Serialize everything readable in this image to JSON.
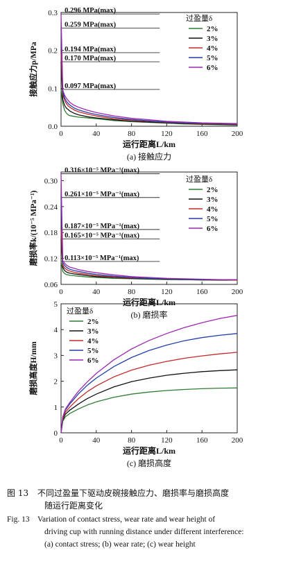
{
  "chart_data": [
    {
      "type": "line",
      "panel_caption": "(a) 接触应力",
      "ylabel": "接触应力p/MPa",
      "xlabel": "运行距离L/km",
      "xlim": [
        0,
        200
      ],
      "ylim": [
        0,
        0.3
      ],
      "xticks": [
        0,
        40,
        80,
        120,
        160,
        200
      ],
      "yticks": [
        0.0,
        0.1,
        0.2,
        0.3
      ],
      "yticks_labels": [
        "0.0",
        "0.1",
        "0.2",
        "0.3"
      ],
      "legend_title": "过盈量δ",
      "legend_position": "top-right",
      "annotations": [
        {
          "text": "0.296 MPa(max)",
          "y": 0.296
        },
        {
          "text": "0.259 MPa(max)",
          "y": 0.259
        },
        {
          "text": "0.194 MPa(max)",
          "y": 0.194
        },
        {
          "text": "0.170 MPa(max)",
          "y": 0.17
        },
        {
          "text": "0.097 MPa(max)",
          "y": 0.097
        }
      ],
      "series": [
        {
          "name": "2%",
          "color": "#2e7d32",
          "x": [
            0,
            2,
            4,
            6,
            8,
            10,
            15,
            20,
            30,
            40,
            60,
            80,
            100,
            120,
            140,
            160,
            180,
            200
          ],
          "y": [
            0.097,
            0.06,
            0.042,
            0.035,
            0.03,
            0.028,
            0.026,
            0.024,
            0.022,
            0.02,
            0.015,
            0.012,
            0.01,
            0.008,
            0.006,
            0.005,
            0.004,
            0.003
          ]
        },
        {
          "name": "3%",
          "color": "#111111",
          "x": [
            0,
            2,
            4,
            6,
            8,
            10,
            15,
            20,
            30,
            40,
            60,
            80,
            100,
            120,
            140,
            160,
            180,
            200
          ],
          "y": [
            0.17,
            0.07,
            0.055,
            0.048,
            0.044,
            0.04,
            0.034,
            0.03,
            0.025,
            0.022,
            0.017,
            0.013,
            0.011,
            0.009,
            0.007,
            0.006,
            0.005,
            0.004
          ]
        },
        {
          "name": "4%",
          "color": "#c62828",
          "x": [
            0,
            2,
            4,
            6,
            8,
            10,
            15,
            20,
            30,
            40,
            60,
            80,
            100,
            120,
            140,
            160,
            180,
            200
          ],
          "y": [
            0.194,
            0.085,
            0.068,
            0.06,
            0.054,
            0.05,
            0.043,
            0.038,
            0.032,
            0.027,
            0.02,
            0.016,
            0.013,
            0.01,
            0.008,
            0.007,
            0.006,
            0.005
          ]
        },
        {
          "name": "5%",
          "color": "#1e3fa8",
          "x": [
            0,
            2,
            4,
            6,
            8,
            10,
            15,
            20,
            30,
            40,
            60,
            80,
            100,
            120,
            140,
            160,
            180,
            200
          ],
          "y": [
            0.259,
            0.09,
            0.075,
            0.066,
            0.06,
            0.056,
            0.048,
            0.043,
            0.036,
            0.031,
            0.023,
            0.018,
            0.014,
            0.011,
            0.009,
            0.008,
            0.007,
            0.006
          ]
        },
        {
          "name": "6%",
          "color": "#9c27b0",
          "x": [
            0,
            2,
            4,
            6,
            8,
            10,
            15,
            20,
            30,
            40,
            60,
            80,
            100,
            120,
            140,
            160,
            180,
            200
          ],
          "y": [
            0.296,
            0.095,
            0.082,
            0.074,
            0.068,
            0.063,
            0.055,
            0.05,
            0.042,
            0.036,
            0.027,
            0.021,
            0.017,
            0.013,
            0.011,
            0.009,
            0.008,
            0.007
          ]
        }
      ]
    },
    {
      "type": "line",
      "panel_caption": "(b) 磨损率",
      "ylabel": "磨损率k/(10⁻⁵ MPa⁻¹)",
      "xlabel": "运行距离L/km",
      "xlim": [
        0,
        200
      ],
      "ylim": [
        0.06,
        0.32
      ],
      "xticks": [
        0,
        40,
        80,
        120,
        160,
        200
      ],
      "yticks": [
        0.06,
        0.12,
        0.18,
        0.24,
        0.3
      ],
      "yticks_labels": [
        "0.06",
        "0.12",
        "0.18",
        "0.24",
        "0.30"
      ],
      "legend_title": "过盈量δ",
      "legend_position": "top-right",
      "annotations": [
        {
          "text": "0.316×10⁻⁵ MPa⁻¹(max)",
          "y": 0.316
        },
        {
          "text": "0.261×10⁻⁵ MPa⁻¹(max)",
          "y": 0.261
        },
        {
          "text": "0.187×10⁻⁵ MPa⁻¹(max)",
          "y": 0.187
        },
        {
          "text": "0.165×10⁻⁵ MPa⁻¹(max)",
          "y": 0.165
        },
        {
          "text": "0.113×10⁻⁵ MPa⁻¹(max)",
          "y": 0.113
        }
      ],
      "series": [
        {
          "name": "2%",
          "color": "#2e7d32",
          "x": [
            0,
            2,
            4,
            6,
            8,
            10,
            15,
            20,
            30,
            40,
            60,
            80,
            100,
            120,
            140,
            160,
            180,
            200
          ],
          "y": [
            0.113,
            0.09,
            0.085,
            0.083,
            0.082,
            0.081,
            0.08,
            0.079,
            0.077,
            0.076,
            0.074,
            0.073,
            0.072,
            0.071,
            0.071,
            0.07,
            0.07,
            0.07
          ]
        },
        {
          "name": "3%",
          "color": "#111111",
          "x": [
            0,
            2,
            4,
            6,
            8,
            10,
            15,
            20,
            30,
            40,
            60,
            80,
            100,
            120,
            140,
            160,
            180,
            200
          ],
          "y": [
            0.165,
            0.1,
            0.092,
            0.089,
            0.087,
            0.086,
            0.084,
            0.083,
            0.08,
            0.078,
            0.076,
            0.074,
            0.073,
            0.072,
            0.071,
            0.071,
            0.07,
            0.07
          ]
        },
        {
          "name": "4%",
          "color": "#c62828",
          "x": [
            0,
            2,
            4,
            6,
            8,
            10,
            15,
            20,
            30,
            40,
            60,
            80,
            100,
            120,
            140,
            160,
            180,
            200
          ],
          "y": [
            0.187,
            0.105,
            0.098,
            0.095,
            0.092,
            0.091,
            0.088,
            0.086,
            0.083,
            0.08,
            0.077,
            0.075,
            0.074,
            0.073,
            0.072,
            0.071,
            0.071,
            0.07
          ]
        },
        {
          "name": "5%",
          "color": "#1e3fa8",
          "x": [
            0,
            2,
            4,
            6,
            8,
            10,
            15,
            20,
            30,
            40,
            60,
            80,
            100,
            120,
            140,
            160,
            180,
            200
          ],
          "y": [
            0.261,
            0.11,
            0.104,
            0.1,
            0.097,
            0.095,
            0.092,
            0.09,
            0.086,
            0.083,
            0.079,
            0.076,
            0.074,
            0.073,
            0.072,
            0.071,
            0.071,
            0.071
          ]
        },
        {
          "name": "6%",
          "color": "#9c27b0",
          "x": [
            0,
            2,
            4,
            6,
            8,
            10,
            15,
            20,
            30,
            40,
            60,
            80,
            100,
            120,
            140,
            160,
            180,
            200
          ],
          "y": [
            0.316,
            0.115,
            0.109,
            0.105,
            0.102,
            0.1,
            0.097,
            0.094,
            0.09,
            0.087,
            0.082,
            0.078,
            0.076,
            0.074,
            0.073,
            0.072,
            0.071,
            0.071
          ]
        }
      ]
    },
    {
      "type": "line",
      "panel_caption": "(c) 磨损高度",
      "ylabel": "磨损高度H/mm",
      "xlabel": "运行距离L/km",
      "xlim": [
        0,
        200
      ],
      "ylim": [
        0,
        5
      ],
      "xticks": [
        0,
        40,
        80,
        120,
        160,
        200
      ],
      "yticks": [
        0,
        1,
        2,
        3,
        4,
        5
      ],
      "yticks_labels": [
        "0",
        "1",
        "2",
        "3",
        "4",
        "5"
      ],
      "legend_title": "过盈量δ",
      "legend_position": "top-left",
      "annotations": [],
      "series": [
        {
          "name": "2%",
          "color": "#2e7d32",
          "x": [
            0,
            2,
            5,
            10,
            20,
            30,
            40,
            60,
            80,
            100,
            120,
            140,
            160,
            180,
            200
          ],
          "y": [
            0,
            0.45,
            0.62,
            0.75,
            0.93,
            1.08,
            1.2,
            1.38,
            1.5,
            1.58,
            1.64,
            1.68,
            1.71,
            1.73,
            1.74
          ]
        },
        {
          "name": "3%",
          "color": "#111111",
          "x": [
            0,
            2,
            5,
            10,
            20,
            30,
            40,
            60,
            80,
            100,
            120,
            140,
            160,
            180,
            200
          ],
          "y": [
            0,
            0.5,
            0.72,
            0.88,
            1.12,
            1.33,
            1.5,
            1.78,
            1.98,
            2.12,
            2.23,
            2.31,
            2.37,
            2.41,
            2.44
          ]
        },
        {
          "name": "4%",
          "color": "#c62828",
          "x": [
            0,
            2,
            5,
            10,
            20,
            30,
            40,
            60,
            80,
            100,
            120,
            140,
            160,
            180,
            200
          ],
          "y": [
            0,
            0.55,
            0.8,
            1.0,
            1.33,
            1.6,
            1.82,
            2.17,
            2.43,
            2.62,
            2.77,
            2.89,
            2.98,
            3.06,
            3.12
          ]
        },
        {
          "name": "5%",
          "color": "#1e3fa8",
          "x": [
            0,
            2,
            5,
            10,
            20,
            30,
            40,
            60,
            80,
            100,
            120,
            140,
            160,
            180,
            200
          ],
          "y": [
            0,
            0.6,
            0.88,
            1.12,
            1.52,
            1.85,
            2.12,
            2.57,
            2.92,
            3.19,
            3.4,
            3.57,
            3.69,
            3.78,
            3.85
          ]
        },
        {
          "name": "6%",
          "color": "#9c27b0",
          "x": [
            0,
            2,
            5,
            10,
            20,
            30,
            40,
            60,
            80,
            100,
            120,
            140,
            160,
            180,
            200
          ],
          "y": [
            0,
            0.62,
            0.92,
            1.18,
            1.62,
            1.98,
            2.3,
            2.83,
            3.25,
            3.58,
            3.85,
            4.08,
            4.27,
            4.43,
            4.55
          ]
        }
      ]
    }
  ],
  "caption": {
    "cn_label": "图 13",
    "cn_text": "不同过盈量下驱动皮碗接触应力、磨损率与磨损高度",
    "cn_text2": "随运行距离变化",
    "en_label": "Fig. 13",
    "en_text": "Variation of contact stress, wear rate and wear height of",
    "en_text2": "driving cup with running distance under different interference:",
    "en_text3": "(a) contact stress; (b) wear rate; (c) wear height"
  }
}
